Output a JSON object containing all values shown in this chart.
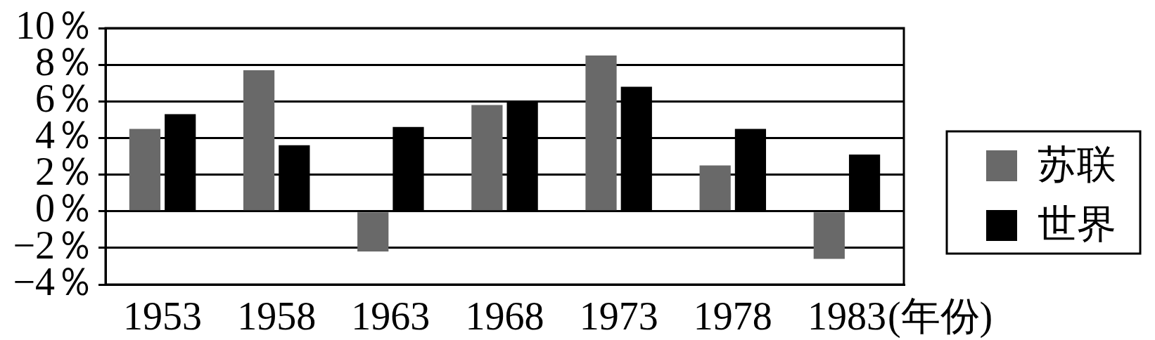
{
  "chart_data": {
    "type": "bar",
    "categories": [
      "1953",
      "1958",
      "1963",
      "1968",
      "1973",
      "1978",
      "1983"
    ],
    "xlabel": "(年份)",
    "series": [
      {
        "name": "苏联",
        "color": "#696969",
        "values": [
          4.5,
          7.7,
          -2.2,
          5.8,
          8.5,
          2.5,
          -2.6
        ]
      },
      {
        "name": "世界",
        "color": "#000000",
        "values": [
          5.3,
          3.6,
          4.6,
          6.0,
          6.8,
          4.5,
          3.1
        ]
      }
    ],
    "ylim": [
      -4,
      10
    ],
    "yticks": [
      {
        "value": -4,
        "label": "−4％"
      },
      {
        "value": -2,
        "label": "−2％"
      },
      {
        "value": 0,
        "label": "0％"
      },
      {
        "value": 2,
        "label": "2％"
      },
      {
        "value": 4,
        "label": "4％"
      },
      {
        "value": 6,
        "label": "6％"
      },
      {
        "value": 8,
        "label": "8％"
      },
      {
        "value": 10,
        "label": "10％"
      }
    ],
    "grid": "y",
    "legend": "right"
  }
}
